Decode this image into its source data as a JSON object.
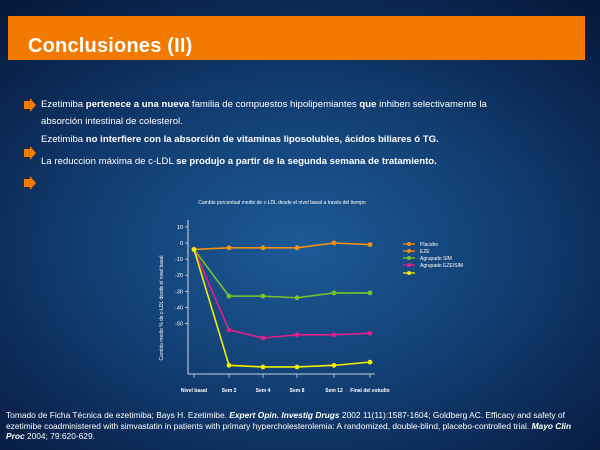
{
  "slide": {
    "title": "Conclusiones (II)",
    "accent_color": "#f37a00",
    "bullets": [
      {
        "icon": "orange-arrow-bullet-icon",
        "parts": [
          {
            "text": "Ezetimiba ",
            "bold": false
          },
          {
            "text": "pertenece a una nueva",
            "bold": true
          },
          {
            "text": " familia de compuestos hipolipemiantes ",
            "bold": false
          },
          {
            "text": "que",
            "bold": true
          },
          {
            "text": " inhiben selectivamente la",
            "bold": false
          }
        ],
        "line2": "absorción intestinal de colesterol."
      },
      {
        "icon": "orange-arrow-bullet-icon",
        "parts": [
          {
            "text": "Ezetimiba ",
            "bold": false
          },
          {
            "text": "no interfiere con la absorción de vitaminas liposolubles, ácidos biliares ó TG.",
            "bold": true
          }
        ]
      },
      {
        "icon": "orange-arrow-bullet-icon",
        "parts": [
          {
            "text": "La reduccion máxima de c-LDL ",
            "bold": false
          },
          {
            "text": "se produjo a partir de la segunda semana de tratamiento.",
            "bold": true
          }
        ]
      }
    ],
    "footer": {
      "prefix": "Tomado de Ficha Técnica de ezetimiba; Bays H. Ezetimibe. ",
      "journal1": "Expert Opin. Investig Drugs",
      "middle": " 2002 11(11):1587-1604; Goldberg AC. Efficacy and safety of ezetimibe coadministered with simvastatin in patients with primary hypercholesterolemia: A randomized, double-blind, placebo-controlled trial. ",
      "journal2": "Mayo Clin Proc",
      "suffix": " 2004; 79:620-629."
    }
  },
  "chart_data": {
    "type": "line",
    "title": "Cambio porcentual medio de c-LDL desde el nivel basal a través del tiempo",
    "ylabel": "Cambio medio % de c-LDL desde el nivel basal",
    "xlabel": "",
    "categories": [
      "Nivel basal",
      "Sem 2",
      "Sem 4",
      "Sem 8",
      "Sem 12",
      "Final del estudio"
    ],
    "yticks": [
      10,
      0,
      -10,
      -20,
      -30,
      -40,
      -50
    ],
    "ylim": [
      -80,
      12
    ],
    "grid": false,
    "legend_position": "right",
    "series": [
      {
        "name": "Placebo",
        "color": "#f5900f",
        "values": [
          -4,
          -3,
          -3,
          -3,
          0,
          -1
        ]
      },
      {
        "name": "EZE",
        "color": "#f5900f",
        "values": null
      },
      {
        "name": "Agrupado SIM",
        "color": "#7ac42a",
        "values": [
          -4,
          -33,
          -33,
          -34,
          -31,
          -31
        ]
      },
      {
        "name": "Agrupado EZE/SIM",
        "color": "#e21f8d",
        "values": [
          -4,
          -54,
          -59,
          -57,
          -57,
          -56
        ]
      },
      {
        "name": "",
        "color": "#f4ef00",
        "values": [
          -4,
          -76,
          -77,
          -77,
          -76,
          -74
        ]
      }
    ]
  }
}
